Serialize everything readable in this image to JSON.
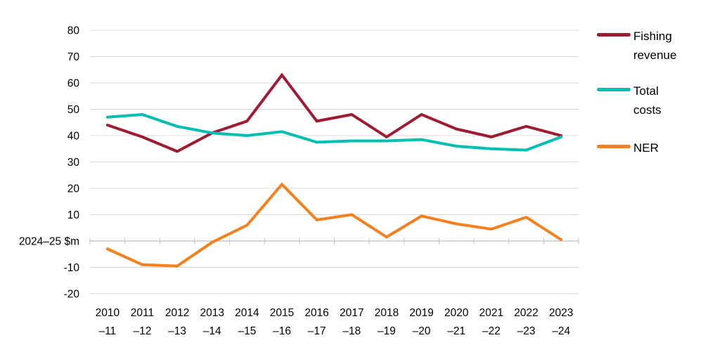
{
  "chart_data": {
    "type": "line",
    "title": "",
    "xlabel": "",
    "ylabel": "2024–25 $m",
    "zero_axis_label": "2024–25 $m",
    "x": [
      "2010–11",
      "2011–12",
      "2012–13",
      "2013–14",
      "2014–15",
      "2015–16",
      "2016–17",
      "2017–18",
      "2018–19",
      "2019–20",
      "2020–21",
      "2021–22",
      "2022–23",
      "2023–24"
    ],
    "x_tick_lines": [
      [
        "2010",
        "–11"
      ],
      [
        "2011",
        "–12"
      ],
      [
        "2012",
        "–13"
      ],
      [
        "2013",
        "–14"
      ],
      [
        "2014",
        "–15"
      ],
      [
        "2015",
        "–16"
      ],
      [
        "2016",
        "–17"
      ],
      [
        "2017",
        "–18"
      ],
      [
        "2018",
        "–19"
      ],
      [
        "2019",
        "–20"
      ],
      [
        "2020",
        "–21"
      ],
      [
        "2021",
        "–22"
      ],
      [
        "2022",
        "–23"
      ],
      [
        "2023",
        "–24"
      ]
    ],
    "series": [
      {
        "name": "Fishing revenue",
        "color": "#9E1B32",
        "values": [
          44,
          39.5,
          34,
          41,
          45.5,
          63,
          45.5,
          48,
          39.5,
          48,
          42.5,
          39.5,
          43.5,
          40
        ]
      },
      {
        "name": "Total costs",
        "color": "#00BFB2",
        "values": [
          47,
          48,
          43.5,
          41,
          40,
          41.5,
          37.5,
          38,
          38,
          38.5,
          36,
          35,
          34.5,
          39.5
        ]
      },
      {
        "name": "NER",
        "color": "#F6801E",
        "values": [
          -3,
          -9,
          -9.5,
          -0.5,
          6,
          21.5,
          8,
          10,
          1.5,
          9.5,
          6.5,
          4.5,
          9,
          0.5
        ]
      }
    ],
    "ylim": [
      -20,
      80
    ],
    "y_ticks": [
      80,
      70,
      60,
      50,
      40,
      30,
      20,
      10,
      0,
      -10,
      -20
    ],
    "y_tick_labels": [
      "80",
      "70",
      "60",
      "50",
      "40",
      "30",
      "20",
      "10",
      "2024–25 $m",
      "-10",
      "-20"
    ],
    "grid": "horizontal",
    "legend_position": "right",
    "colors": {
      "gridline": "#D9D9D9",
      "axis": "#BFBFBF",
      "text": "#000000",
      "background": "#FFFFFF"
    }
  }
}
